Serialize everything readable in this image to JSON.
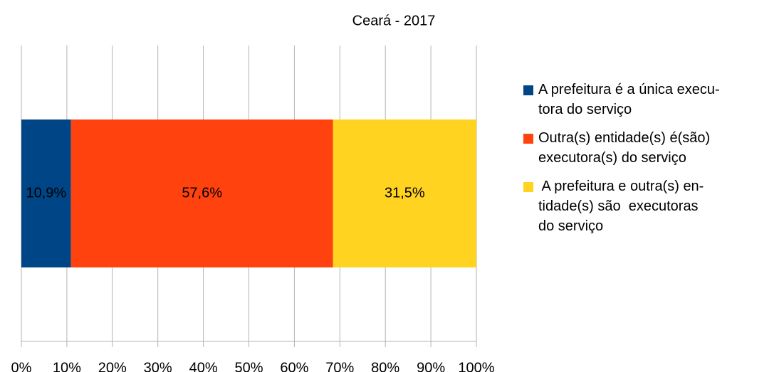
{
  "chart_data": {
    "type": "stacked_barh",
    "title": "Ceará - 2017",
    "categories": [
      null
    ],
    "series": [
      {
        "name": "A prefeitura é a única execu-\ntora do serviço",
        "color": "#004586",
        "values": [
          10.9
        ],
        "value_labels": [
          "10,9%"
        ]
      },
      {
        "name": "Outra(s) entidade(s) é(são)\nexecutora(s) do serviço",
        "color": "#ff420e",
        "values": [
          57.6
        ],
        "value_labels": [
          "57,6%"
        ]
      },
      {
        "name": " A prefeitura e outra(s) en-\ntidade(s) são  executoras\ndo serviço",
        "color": "#ffd320",
        "values": [
          31.5
        ],
        "value_labels": [
          "31,5%"
        ]
      }
    ],
    "xlim": [
      0,
      100
    ],
    "xticks": [
      {
        "value": 0,
        "label": "0%"
      },
      {
        "value": 10,
        "label": "10%"
      },
      {
        "value": 20,
        "label": "20%"
      },
      {
        "value": 30,
        "label": "30%"
      },
      {
        "value": 40,
        "label": "40%"
      },
      {
        "value": 50,
        "label": "50%"
      },
      {
        "value": 60,
        "label": "60%"
      },
      {
        "value": 70,
        "label": "70%"
      },
      {
        "value": 80,
        "label": "80%"
      },
      {
        "value": 90,
        "label": "90%"
      },
      {
        "value": 100,
        "label": "100%"
      }
    ],
    "grid": true,
    "legend": "right"
  }
}
